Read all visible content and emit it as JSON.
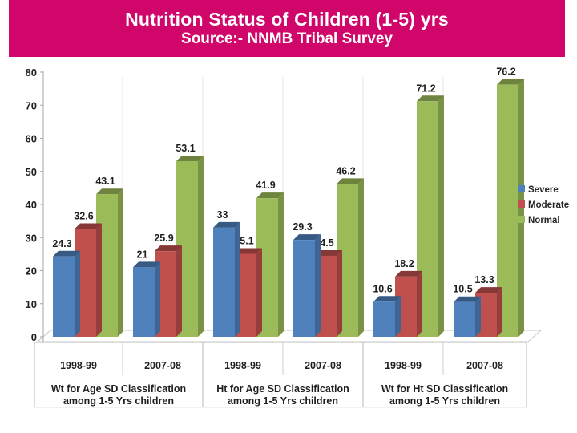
{
  "header": {
    "title": "Nutrition Status of Children (1-5) yrs",
    "subtitle": "Source:- NNMB Tribal Survey",
    "bg_color": "#d0066a",
    "text_color": "#ffffff"
  },
  "chart_data": {
    "type": "bar",
    "style": "3d-clustered-column",
    "title": "Nutrition Status of Children (1-5) yrs",
    "source_note": "Source:- NNMB Tribal Survey",
    "categories": [
      "1998-99",
      "2007-08",
      "1998-99",
      "2007-08",
      "1998-99",
      "2007-08"
    ],
    "category_groups": [
      {
        "line1": "Wt for Age SD Classification",
        "line2": "among 1-5 Yrs children"
      },
      {
        "line1": "Ht for Age SD Classification",
        "line2": "among 1-5 Yrs children"
      },
      {
        "line1": "Wt for Ht SD Classification",
        "line2": "among 1-5 Yrs children"
      }
    ],
    "series": [
      {
        "name": "Severe",
        "color": "#4f81bd",
        "values": [
          24.3,
          21,
          33,
          29.3,
          10.6,
          10.5
        ]
      },
      {
        "name": "Moderate",
        "color": "#c0504d",
        "values": [
          32.6,
          25.9,
          25.1,
          24.5,
          18.2,
          13.3
        ]
      },
      {
        "name": "Normal",
        "color": "#9bbb59",
        "values": [
          43.1,
          53.1,
          41.9,
          46.2,
          71.2,
          76.2
        ]
      }
    ],
    "ylim": [
      0,
      80
    ],
    "yticks": [
      0,
      10,
      20,
      30,
      40,
      50,
      60,
      70,
      80
    ],
    "grid": false,
    "legend": {
      "position": "right",
      "entries": [
        "Severe",
        "Moderate",
        "Normal"
      ]
    },
    "axis_color": "#a6a6a6",
    "label_color": "#1f1f1f"
  }
}
